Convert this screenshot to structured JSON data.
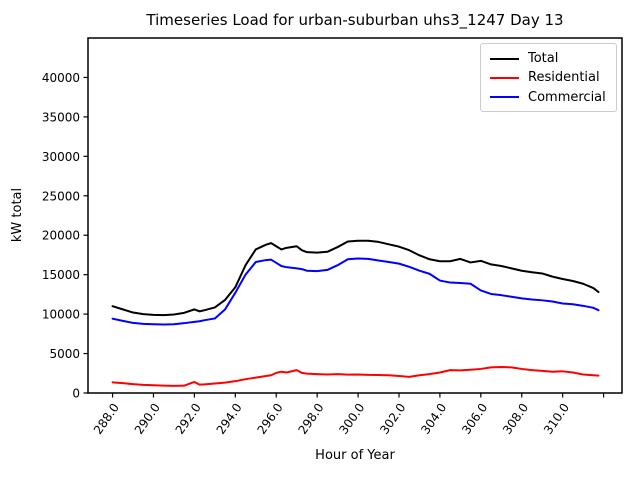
{
  "chart_data": {
    "type": "line",
    "title": "Timeseries Load for urban-suburban uhs3_1247  Day 13",
    "xlabel": "Hour of Year",
    "ylabel": "kW total",
    "xlim": [
      286.8,
      312.9
    ],
    "ylim": [
      0,
      45000
    ],
    "grid": false,
    "legend_position": "upper right",
    "xtick_values": [
      288,
      290,
      292,
      294,
      296,
      298,
      300,
      302,
      304,
      306,
      308,
      310,
      312
    ],
    "xtick_labels": [
      "288.0",
      "290.0",
      "292.0",
      "294.0",
      "296.0",
      "298.0",
      "300.0",
      "302.0",
      "304.0",
      "306.0",
      "308.0",
      "310.0",
      ""
    ],
    "ytick_values": [
      0,
      5000,
      10000,
      15000,
      20000,
      25000,
      30000,
      35000,
      40000
    ],
    "ytick_labels": [
      "0",
      "5000",
      "10000",
      "15000",
      "20000",
      "25000",
      "30000",
      "35000",
      "40000"
    ],
    "x": [
      288,
      288.5,
      289,
      289.5,
      290,
      290.5,
      291,
      291.5,
      292,
      292.25,
      292.5,
      293,
      293.5,
      294,
      294.5,
      295,
      295.5,
      295.75,
      296,
      296.25,
      296.5,
      297,
      297.25,
      297.5,
      298,
      298.5,
      299,
      299.5,
      300,
      300.5,
      301,
      301.5,
      302,
      302.5,
      303,
      303.5,
      304,
      304.5,
      305,
      305.5,
      306,
      306.5,
      307,
      307.5,
      308,
      308.5,
      309,
      309.5,
      310,
      310.5,
      311,
      311.5,
      311.75
    ],
    "series": [
      {
        "name": "Total",
        "color": "#000000",
        "values": [
          11000,
          10600,
          10200,
          10000,
          9900,
          9870,
          9950,
          10160,
          10600,
          10350,
          10500,
          10850,
          11800,
          13400,
          16200,
          18200,
          18800,
          19000,
          18600,
          18200,
          18400,
          18600,
          18100,
          17850,
          17800,
          17900,
          18500,
          19200,
          19300,
          19300,
          19150,
          18850,
          18550,
          18100,
          17450,
          16950,
          16700,
          16700,
          17000,
          16550,
          16750,
          16300,
          16100,
          15800,
          15500,
          15300,
          15150,
          14750,
          14450,
          14200,
          13850,
          13300,
          12800
        ]
      },
      {
        "name": "Residential",
        "color": "#ff0000",
        "values": [
          1350,
          1250,
          1120,
          1030,
          980,
          930,
          900,
          930,
          1400,
          1060,
          1100,
          1200,
          1320,
          1500,
          1750,
          1950,
          2150,
          2250,
          2550,
          2700,
          2600,
          2900,
          2550,
          2450,
          2400,
          2350,
          2400,
          2330,
          2350,
          2300,
          2280,
          2250,
          2150,
          2050,
          2250,
          2400,
          2600,
          2900,
          2870,
          2950,
          3050,
          3250,
          3300,
          3250,
          3050,
          2900,
          2800,
          2700,
          2750,
          2600,
          2350,
          2250,
          2200
        ]
      },
      {
        "name": "Commercial",
        "color": "#0000ff",
        "values": [
          9420,
          9140,
          8890,
          8760,
          8720,
          8680,
          8720,
          8850,
          9020,
          9100,
          9230,
          9450,
          10600,
          12700,
          15000,
          16600,
          16850,
          16900,
          16500,
          16100,
          15950,
          15800,
          15700,
          15500,
          15450,
          15600,
          16200,
          16950,
          17050,
          17000,
          16800,
          16600,
          16400,
          16000,
          15500,
          15100,
          14250,
          14000,
          13950,
          13850,
          13000,
          12550,
          12400,
          12200,
          12000,
          11850,
          11750,
          11600,
          11350,
          11250,
          11050,
          10800,
          10500
        ]
      }
    ]
  }
}
